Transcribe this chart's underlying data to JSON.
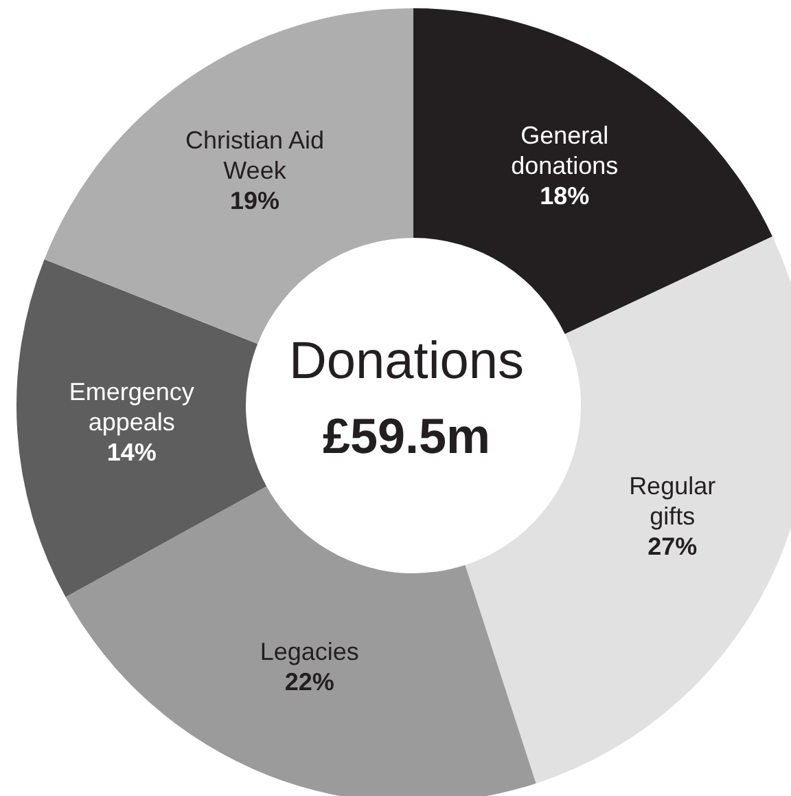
{
  "chart_data": {
    "type": "donut",
    "title": "Donations",
    "annotations": [
      "£59.5m"
    ],
    "categories": [
      "General donations",
      "Regular gifts",
      "Legacies",
      "Emergency appeals",
      "Christian Aid Week"
    ],
    "values": [
      18,
      27,
      22,
      14,
      19
    ],
    "colors": [
      "#231f20",
      "#e1e1e1",
      "#9b9b9b",
      "#5e5e5e",
      "#aeaeae"
    ],
    "value_labels": [
      "18%",
      "27%",
      "22%",
      "14%",
      "19%"
    ]
  }
}
